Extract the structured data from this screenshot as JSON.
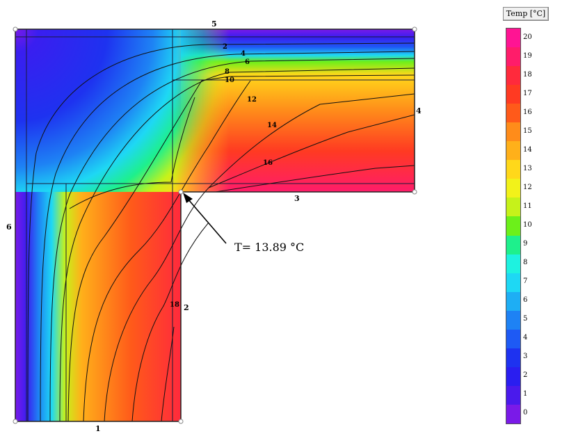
{
  "legend": {
    "title": "Temp [°C]",
    "levels": [
      {
        "label": "20",
        "color": "#ff1493"
      },
      {
        "label": "19",
        "color": "#ff1c6a"
      },
      {
        "label": "18",
        "color": "#ff2a3c"
      },
      {
        "label": "17",
        "color": "#ff3a22"
      },
      {
        "label": "16",
        "color": "#ff5a1a"
      },
      {
        "label": "15",
        "color": "#ff8c1a"
      },
      {
        "label": "14",
        "color": "#ffb01a"
      },
      {
        "label": "13",
        "color": "#ffd81a"
      },
      {
        "label": "12",
        "color": "#f2f21a"
      },
      {
        "label": "11",
        "color": "#c6f21a"
      },
      {
        "label": "10",
        "color": "#6cf01a"
      },
      {
        "label": "9",
        "color": "#1ef08c"
      },
      {
        "label": "8",
        "color": "#1ef2e0"
      },
      {
        "label": "7",
        "color": "#1ed8f4"
      },
      {
        "label": "6",
        "color": "#1eaef4"
      },
      {
        "label": "5",
        "color": "#1e82f4"
      },
      {
        "label": "4",
        "color": "#1e5af4"
      },
      {
        "label": "3",
        "color": "#1e32f0"
      },
      {
        "label": "2",
        "color": "#2a1ef0"
      },
      {
        "label": "1",
        "color": "#4a1aec"
      },
      {
        "label": "0",
        "color": "#7a1ae8"
      }
    ]
  },
  "boundaries": {
    "b1": "1",
    "b2": "2",
    "b3": "3",
    "b4": "4",
    "b5": "5",
    "b6": "6"
  },
  "contour_labels": {
    "l2": "2",
    "l4": "4",
    "l6": "6",
    "l8": "8",
    "l10": "10",
    "l12": "12",
    "l14": "14",
    "l16": "16",
    "l18": "18"
  },
  "annotation": {
    "text": "T= 13.89 °C"
  }
}
